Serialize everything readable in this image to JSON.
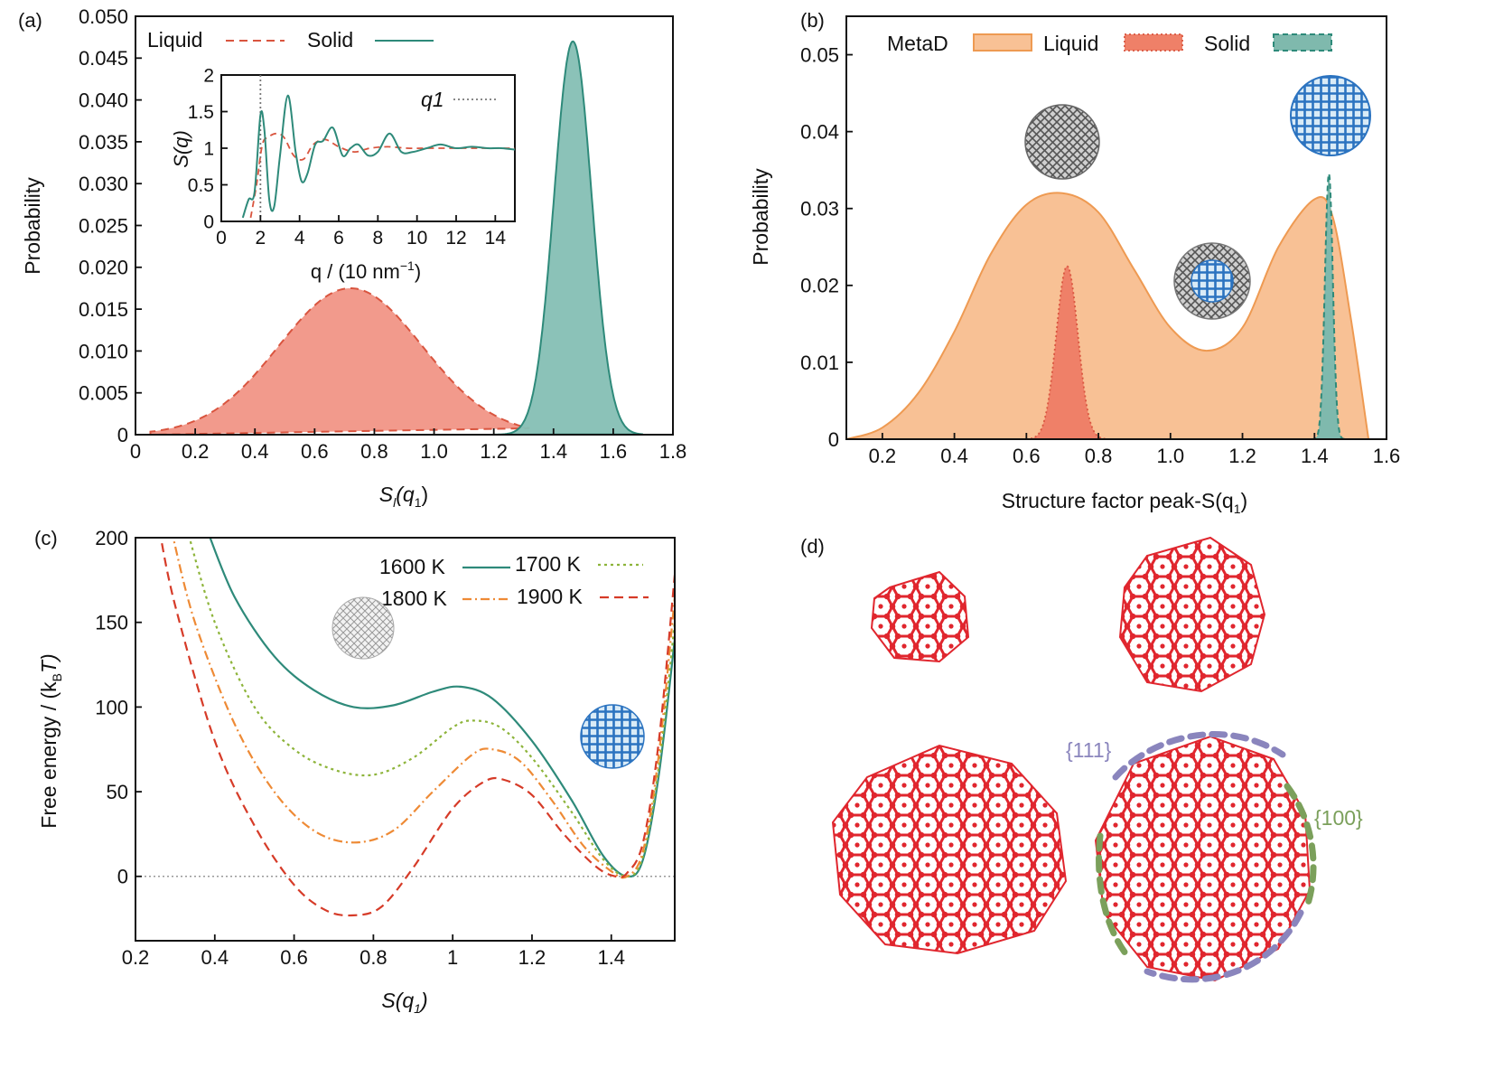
{
  "colors": {
    "liquid_fill": "#f29a8c",
    "liquid_line": "#d9553f",
    "solid_fill": "#86c0b5",
    "solid_line": "#2e8a7a",
    "metad_fill": "#f8c195",
    "metad_line": "#ee9a52",
    "c1600": "#2e8a7a",
    "c1700": "#8db43a",
    "c1800": "#ee8a35",
    "c1900": "#d63b28",
    "atoms": "#e0262e",
    "facet111": "#8a85bd",
    "facet100": "#7ba05b"
  },
  "chart_data": [
    {
      "panel_label": "(a)",
      "type": "area",
      "xlabel": "S",
      "xlabel_sub": "l",
      "xlabel_arg": "(q",
      "xlabel_arg_sub": "1",
      "xlabel_close": ")",
      "ylabel": "Probability",
      "xlim": [
        0,
        1.8
      ],
      "ylim": [
        0,
        0.05
      ],
      "x_ticks": [
        "0",
        "0.2",
        "0.4",
        "0.6",
        "0.8",
        "1.0",
        "1.2",
        "1.4",
        "1.6",
        "1.8"
      ],
      "y_ticks": [
        "0",
        "0.005",
        "0.010",
        "0.015",
        "0.020",
        "0.025",
        "0.030",
        "0.035",
        "0.040",
        "0.045",
        "0.050"
      ],
      "legend": {
        "liquid": "Liquid",
        "solid": "Solid",
        "placement": "top-left"
      },
      "series": [
        {
          "name": "Liquid",
          "style": "dashed",
          "peak_x": 0.72,
          "peak_y": 0.0175,
          "width": 0.24
        },
        {
          "name": "Solid",
          "style": "solid",
          "peak_x": 1.465,
          "peak_y": 0.047,
          "width": 0.063
        }
      ],
      "inset": {
        "type": "line",
        "ylabel": "S(q)",
        "xlabel": "q / (10 nm",
        "xlabel_sup": "−1",
        "xlabel_close": ")",
        "xlim": [
          0,
          15
        ],
        "ylim": [
          0,
          2
        ],
        "x_ticks": [
          "0",
          "2",
          "4",
          "6",
          "8",
          "10",
          "12",
          "14"
        ],
        "y_ticks": [
          "0",
          "0.5",
          "1",
          "1.5",
          "2"
        ],
        "marker_label": "q1",
        "marker_x": 2.0,
        "solid_x": [
          1.1,
          1.4,
          1.7,
          2.0,
          2.2,
          2.45,
          2.7,
          3.0,
          3.4,
          3.8,
          4.1,
          4.4,
          4.8,
          5.2,
          5.7,
          6.2,
          6.6,
          7.0,
          7.5,
          8.0,
          8.6,
          9.2,
          9.8,
          10.5,
          11.2,
          12.0,
          12.8,
          13.6,
          14.3,
          15.0
        ],
        "solid_y": [
          0.05,
          0.3,
          0.4,
          1.45,
          1.25,
          0.3,
          0.2,
          0.9,
          1.72,
          0.95,
          0.55,
          0.65,
          1.05,
          1.1,
          1.28,
          0.9,
          1.0,
          1.05,
          0.9,
          0.95,
          1.2,
          0.95,
          0.95,
          1.0,
          1.05,
          1.0,
          1.02,
          1.0,
          1.0,
          0.98
        ],
        "liquid_x": [
          1.5,
          1.8,
          2.1,
          2.4,
          2.8,
          3.2,
          3.7,
          4.2,
          4.7,
          5.3,
          6.0,
          6.8,
          7.6,
          8.5,
          9.5,
          10.5,
          11.5,
          12.5,
          13.5,
          15.0
        ],
        "liquid_y": [
          0.05,
          0.5,
          1.05,
          1.15,
          1.2,
          1.15,
          0.9,
          0.85,
          1.05,
          1.12,
          1.02,
          0.95,
          1.0,
          1.02,
          1.0,
          1.0,
          1.0,
          1.0,
          1.0,
          1.0
        ]
      }
    },
    {
      "panel_label": "(b)",
      "type": "area",
      "xlabel": "Structure factor peak-S(q",
      "xlabel_sub": "1",
      "xlabel_close": ")",
      "ylabel": "Probability",
      "xlim": [
        0.1,
        1.6
      ],
      "ylim": [
        0,
        0.055
      ],
      "x_ticks": [
        "0.2",
        "0.4",
        "0.6",
        "0.8",
        "1.0",
        "1.2",
        "1.4",
        "1.6"
      ],
      "y_ticks": [
        "0",
        "0.01",
        "0.02",
        "0.03",
        "0.04",
        "0.05"
      ],
      "legend": {
        "metad": "MetaD",
        "liquid": "Liquid",
        "solid": "Solid",
        "placement": "top"
      },
      "series": [
        {
          "name": "MetaD",
          "x": [
            0.1,
            0.2,
            0.3,
            0.4,
            0.5,
            0.6,
            0.7,
            0.8,
            0.9,
            1.0,
            1.1,
            1.2,
            1.3,
            1.4,
            1.45,
            1.5,
            1.55
          ],
          "y": [
            0.0,
            0.0015,
            0.006,
            0.014,
            0.024,
            0.0305,
            0.032,
            0.0295,
            0.022,
            0.0145,
            0.0115,
            0.0145,
            0.025,
            0.0312,
            0.029,
            0.016,
            0.0
          ]
        },
        {
          "name": "Liquid",
          "peak_x": 0.713,
          "peak_y": 0.0225,
          "width": 0.03
        },
        {
          "name": "Solid",
          "peak_x": 1.44,
          "peak_y": 0.0345,
          "width": 0.011
        }
      ]
    },
    {
      "panel_label": "(c)",
      "type": "line",
      "xlabel": "S(q",
      "xlabel_sub": "1",
      "xlabel_close": ")",
      "ylabel": "Free energy / (k",
      "ylabel_sub": "B",
      "ylabel_end": "T)",
      "xlim": [
        0.2,
        1.56
      ],
      "ylim": [
        -38,
        200
      ],
      "x_ticks": [
        "0.2",
        "0.4",
        "0.6",
        "0.8",
        "1",
        "1.2",
        "1.4"
      ],
      "y_ticks": [
        "0",
        "50",
        "100",
        "150",
        "200"
      ],
      "legend": {
        "t1600": "1600 K",
        "t1700": "1700 K",
        "t1800": "1800 K",
        "t1900": "1900 K",
        "placement": "top-right"
      },
      "series": [
        {
          "name": "1600 K",
          "style": "solid",
          "x": [
            0.38,
            0.45,
            0.55,
            0.65,
            0.75,
            0.85,
            0.95,
            1.02,
            1.1,
            1.2,
            1.3,
            1.38,
            1.44,
            1.48,
            1.52,
            1.56
          ],
          "y": [
            205,
            165,
            130,
            110,
            100,
            101,
            109,
            112,
            105,
            80,
            45,
            12,
            0,
            10,
            60,
            140
          ]
        },
        {
          "name": "1700 K",
          "style": "dotted",
          "x": [
            0.33,
            0.4,
            0.5,
            0.6,
            0.7,
            0.8,
            0.9,
            1.0,
            1.05,
            1.12,
            1.2,
            1.3,
            1.38,
            1.44,
            1.48,
            1.52,
            1.56
          ],
          "y": [
            205,
            150,
            100,
            75,
            63,
            60,
            70,
            88,
            92,
            88,
            70,
            38,
            10,
            0,
            12,
            65,
            150
          ]
        },
        {
          "name": "1800 K",
          "style": "dashdot",
          "x": [
            0.29,
            0.35,
            0.45,
            0.55,
            0.65,
            0.75,
            0.85,
            0.95,
            1.05,
            1.1,
            1.17,
            1.25,
            1.33,
            1.4,
            1.44,
            1.48,
            1.52,
            1.56
          ],
          "y": [
            205,
            150,
            90,
            50,
            27,
            20,
            27,
            50,
            72,
            75,
            68,
            45,
            18,
            3,
            0,
            15,
            72,
            165
          ]
        },
        {
          "name": "1900 K",
          "style": "dashed",
          "x": [
            0.26,
            0.3,
            0.4,
            0.5,
            0.6,
            0.68,
            0.75,
            0.82,
            0.9,
            1.0,
            1.08,
            1.13,
            1.2,
            1.28,
            1.36,
            1.41,
            1.44,
            1.48,
            1.52,
            1.56
          ],
          "y": [
            205,
            160,
            80,
            30,
            -5,
            -20,
            -23,
            -18,
            5,
            40,
            56,
            57,
            48,
            25,
            6,
            0,
            2,
            20,
            80,
            178
          ]
        }
      ]
    }
  ],
  "panel_d": {
    "label": "(d)",
    "facet111": "{111}",
    "facet100": "{100}"
  }
}
